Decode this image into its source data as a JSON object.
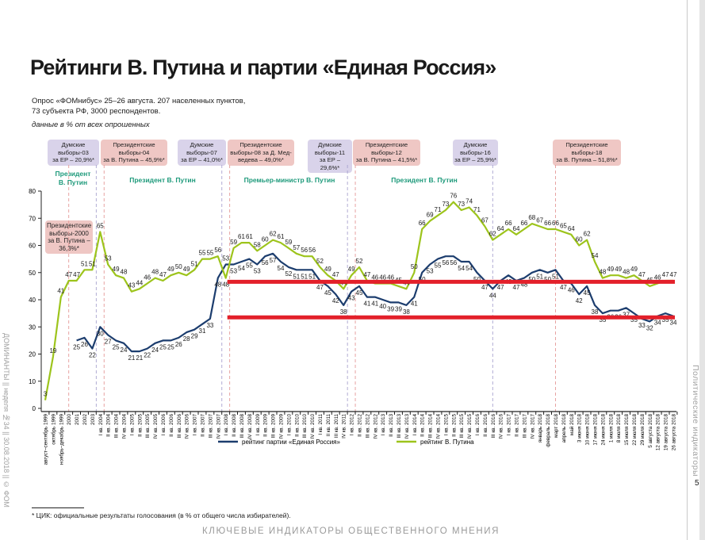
{
  "title": "Рейтинги В. Путина и партии «Единая Россия»",
  "subtitle_line1": "Опрос «ФОМнибус» 25–26 августа. 207 населенных пунктов,",
  "subtitle_line2": "73 субъекта РФ, 3000 респондентов.",
  "units_note": "данные в % от всех опрошенных",
  "events": [
    {
      "type": "duma",
      "l1": "Думские",
      "l2": "выборы-03",
      "l3": "за ЕР – 20,9%*"
    },
    {
      "type": "pres",
      "l1": "Президентские",
      "l2": "выборы-04",
      "l3": "за В. Путина – 45,9%*"
    },
    {
      "type": "duma",
      "l1": "Думские",
      "l2": "выборы-07",
      "l3": "за ЕР – 41,0%*"
    },
    {
      "type": "pres",
      "l1": "Президентские",
      "l2": "выборы-08 за Д. Мед-",
      "l3": "ведева – 49,0%*"
    },
    {
      "type": "duma",
      "l1": "Думские",
      "l2": "выборы-11",
      "l3": "за ЕР – 29,6%*"
    },
    {
      "type": "pres",
      "l1": "Президентские",
      "l2": "выборы-12",
      "l3": "за В. Путина – 41,5%*"
    },
    {
      "type": "duma",
      "l1": "Думские",
      "l2": "выборы-16",
      "l3": "за ЕР – 25,9%*"
    },
    {
      "type": "pres",
      "l1": "Президентские",
      "l2": "выборы-18",
      "l3": "за В. Путина – 51,8%*"
    },
    {
      "type": "pres",
      "l1": "Президентские",
      "l2": "выборы-2000",
      "l3": "за В. Путина –",
      "l4": "36,3%*"
    }
  ],
  "periods": [
    {
      "l1": "Президент",
      "l2": "В. Путин"
    },
    {
      "l1": "Президент В. Путин"
    },
    {
      "l1": "Премьер-министр В. Путин"
    },
    {
      "l1": "Президент В. Путин"
    }
  ],
  "legend": {
    "er": "рейтинг партии «Единая Россия»",
    "putin": "рейтинг В. Путина"
  },
  "footnote": "*  ЦИК: официальные результаты голосования (в % от общего числа избирателей).",
  "footer": "КЛЮЧЕВЫЕ ИНДИКАТОРЫ ОБЩЕСТВЕННОГО МНЕНИЯ",
  "side_left": "ДОМИНАНТЫ  ||  неделя №34  ||  30.08.2018  ||  © ФОМ",
  "side_right": "Политические индикаторы",
  "page_number": "5",
  "colors": {
    "putin": "#9dc41c",
    "er": "#1c3d6e",
    "annotation": "#e3202a",
    "duma_line": "#a9a3cf",
    "pres_line": "#e59a98"
  },
  "chart_data": {
    "type": "line",
    "title": "Рейтинги В. Путина и партии «Единая Россия»",
    "ylabel": "%",
    "ylim": [
      0,
      80
    ],
    "yticks": [
      "0",
      "10",
      "20",
      "30",
      "40",
      "50",
      "60",
      "70",
      "80"
    ],
    "categories": [
      "август–сентябрь 1999",
      "октябрь 1999",
      "ноябрь–декабрь 1999",
      "2000",
      "2001",
      "2002",
      "2003",
      "I кв. 2004",
      "II кв. 2004",
      "III кв. 2004",
      "IV кв. 2004",
      "I кв. 2005",
      "II кв. 2005",
      "III кв. 2005",
      "IV кв. 2005",
      "I кв. 2006",
      "II кв. 2006",
      "III кв. 2006",
      "IV кв. 2006",
      "I кв. 2007",
      "II кв. 2007",
      "III кв. 2007",
      "IV кв. 2007",
      "I кв. 2008",
      "II кв. 2008",
      "III кв. 2008",
      "IV кв. 2008",
      "I кв. 2009",
      "II кв. 2009",
      "III кв. 2009",
      "IV кв. 2009",
      "I кв. 2010",
      "II кв. 2010",
      "III кв. 2010",
      "IV кв. 2010",
      "I кв. 2011",
      "II кв. 2011",
      "III кв. 2011",
      "IV кв. 2011",
      "I кв. 2012",
      "II кв. 2012",
      "III кв. 2012",
      "IV кв. 2012",
      "I кв. 2013",
      "II кв. 2013",
      "III кв. 2013",
      "IV кв. 2013",
      "I кв. 2014",
      "II кв. 2014",
      "III кв. 2014",
      "IV кв. 2014",
      "I кв. 2015",
      "II кв. 2015",
      "III кв. 2015",
      "IV кв. 2015",
      "I кв. 2016",
      "II кв. 2016",
      "III кв. 2016",
      "IV кв. 2016",
      "I кв. 2017",
      "II кв. 2017",
      "III кв. 2017",
      "IV кв. 2017",
      "январь 2018",
      "февраль 2018",
      "март 2018",
      "апрель 2018",
      "май 2018",
      "3 июня 2018",
      "10 июня 2018",
      "17 июня 2018",
      "24 июня 2018",
      "1 июля 2018",
      "8 июля 2018",
      "15 июля 2018",
      "22 июля 2018",
      "29 июля 2018",
      "5 августа 2018",
      "12 августа 2018",
      "19 августа 2018",
      "26 августа 2018"
    ],
    "series": [
      {
        "name": "рейтинг партии «Единая Россия»",
        "key": "er",
        "values": [
          null,
          null,
          null,
          null,
          25,
          26,
          22,
          30,
          27,
          25,
          24,
          21,
          21,
          22,
          24,
          25,
          25,
          26,
          28,
          29,
          31,
          33,
          48,
          53,
          53,
          54,
          55,
          53,
          56,
          57,
          54,
          52,
          51,
          51,
          51,
          47,
          45,
          42,
          38,
          43,
          45,
          41,
          41,
          40,
          39,
          39,
          38,
          41,
          50,
          53,
          55,
          56,
          56,
          54,
          54,
          50,
          47,
          44,
          47,
          49,
          47,
          48,
          50,
          51,
          50,
          51,
          47,
          46,
          42,
          45,
          38,
          35,
          36,
          36,
          37,
          35,
          33,
          32,
          34,
          35,
          34
        ]
      },
      {
        "name": "рейтинг В. Путина",
        "key": "putin",
        "values": [
          3,
          19,
          41,
          47,
          47,
          51,
          51,
          65,
          53,
          49,
          48,
          43,
          44,
          46,
          48,
          47,
          49,
          50,
          49,
          51,
          55,
          55,
          56,
          48,
          59,
          61,
          61,
          58,
          60,
          62,
          61,
          59,
          57,
          56,
          56,
          52,
          49,
          47,
          44,
          49,
          52,
          47,
          46,
          46,
          46,
          45,
          44,
          50,
          66,
          69,
          71,
          73,
          76,
          73,
          74,
          71,
          67,
          62,
          64,
          66,
          64,
          66,
          68,
          67,
          66,
          66,
          65,
          64,
          60,
          62,
          54,
          48,
          49,
          49,
          48,
          49,
          47,
          45,
          46,
          47,
          47
        ]
      }
    ],
    "election_markers": [
      {
        "type": "pres",
        "at_index": 3.0
      },
      {
        "type": "duma",
        "at_index": 6.5
      },
      {
        "type": "pres",
        "at_index": 7.5
      },
      {
        "type": "duma",
        "at_index": 22.5
      },
      {
        "type": "pres",
        "at_index": 23.5
      },
      {
        "type": "duma",
        "at_index": 38.5
      },
      {
        "type": "pres",
        "at_index": 39.5
      },
      {
        "type": "duma",
        "at_index": 57
      },
      {
        "type": "pres",
        "at_index": 65
      }
    ],
    "reference_lines": [
      {
        "value": 46.6,
        "from_index": 23.2
      },
      {
        "value": 33.5,
        "from_index": 23.2
      }
    ],
    "legend_placement": "bottom",
    "grid": false
  }
}
